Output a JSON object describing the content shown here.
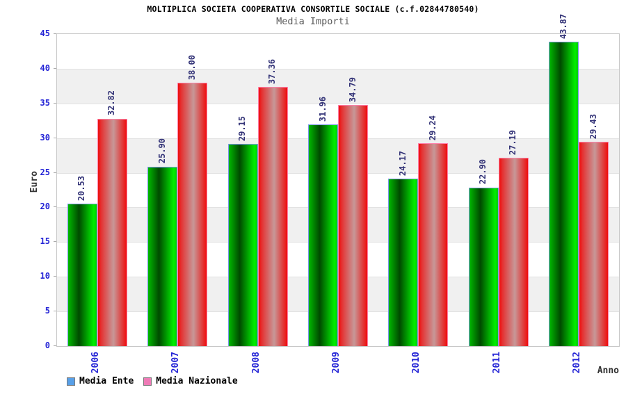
{
  "chart_data": {
    "type": "bar",
    "title": "MOLTIPLICA SOCIETA COOPERATIVA CONSORTILE SOCIALE (c.f.02844780540)",
    "subtitle": "Media Importi",
    "categories": [
      "2006",
      "2007",
      "2008",
      "2009",
      "2010",
      "2011",
      "2012"
    ],
    "series": [
      {
        "name": "Media Ente",
        "values": [
          20.53,
          25.9,
          29.15,
          31.96,
          24.17,
          22.9,
          43.87
        ],
        "legend_color": "#58A0E8",
        "bar_border_color": "#7D96EC",
        "bar_gradient": [
          [
            "#00B800",
            0
          ],
          [
            "#004A00",
            38
          ],
          [
            "#00EE00",
            90
          ],
          [
            "#00CC00",
            100
          ]
        ]
      },
      {
        "name": "Media Nazionale",
        "values": [
          32.82,
          38.0,
          37.36,
          34.79,
          29.24,
          27.19,
          29.43
        ],
        "legend_color": "#EE7AB6",
        "bar_border_color": "#FF82AC",
        "bar_gradient": [
          [
            "#EE0D0D",
            0
          ],
          [
            "#E43535",
            12
          ],
          [
            "#C79898",
            54
          ],
          [
            "#EE0D0D",
            100
          ]
        ]
      }
    ],
    "xlabel": "Anno",
    "ylabel": "Euro",
    "ylim": [
      0,
      45
    ],
    "ytick_step": 5,
    "grid": true,
    "legend_position": "bottom-left",
    "value_label_decimals": 2
  },
  "colors": {
    "axis_tick_label": "#2424D6",
    "value_label": "#333377",
    "band": "#F0F0F0",
    "gridline": "#E2E2E2",
    "tickmark": "#AAAAAA",
    "plot_border": "#C8C8C8"
  }
}
